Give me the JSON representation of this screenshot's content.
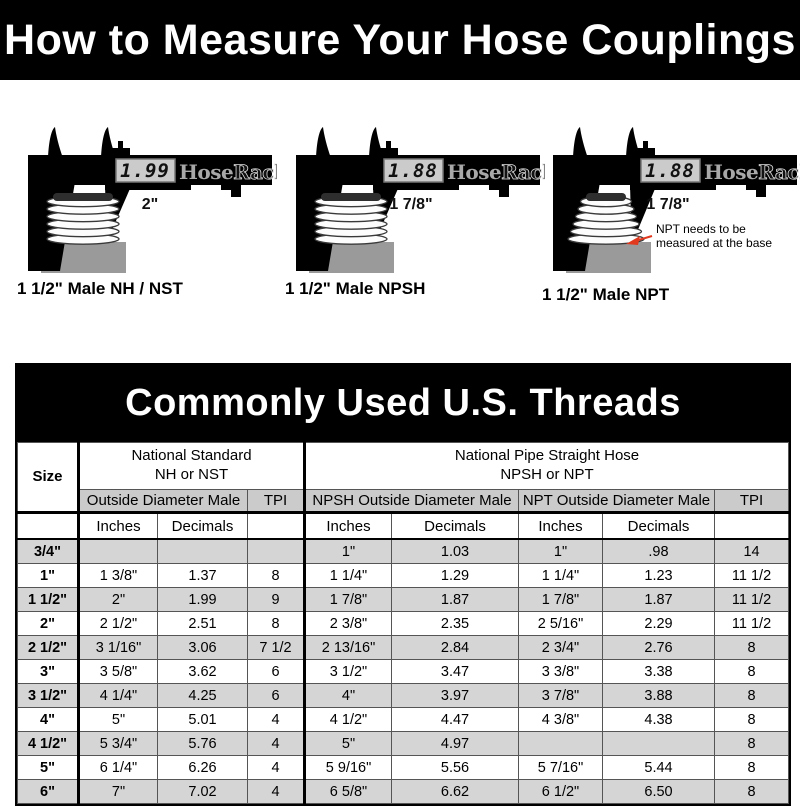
{
  "page_title": "How to Measure Your Hose Couplings",
  "calipers": [
    {
      "display_reading": "1.99",
      "brand": {
        "hose": "Hose",
        "rack": "Rack"
      },
      "measurement_label": "2\"",
      "caption": "1 1/2\" Male NH / NST"
    },
    {
      "display_reading": "1.88",
      "brand": {
        "hose": "Hose",
        "rack": "Rack"
      },
      "measurement_label": "1 7/8\"",
      "caption": "1 1/2\" Male NPSH"
    },
    {
      "display_reading": "1.88",
      "brand": {
        "hose": "Hose",
        "rack": "Rack"
      },
      "measurement_label": "1 7/8\"",
      "caption": "1 1/2\" Male NPT",
      "annotation_line1": "NPT needs to be",
      "annotation_line2": "measured at the base"
    }
  ],
  "table": {
    "title": "Commonly Used U.S. Threads",
    "headers": {
      "size": "Size",
      "nh_group_line1": "National Standard",
      "nh_group_line2": "NH or NST",
      "npsh_group_line1": "National Pipe Straight Hose",
      "npsh_group_line2": "NPSH or NPT",
      "nh_od": "Outside Diameter Male",
      "nh_tpi": "TPI",
      "npsh_od": "NPSH Outside Diameter Male",
      "npt_od": "NPT Outside Diameter Male",
      "npt_tpi": "TPI",
      "inches": "Inches",
      "decimals": "Decimals"
    },
    "rows": [
      [
        "3/4\"",
        "",
        "",
        "",
        "1\"",
        "1.03",
        "1\"",
        ".98",
        "14"
      ],
      [
        "1\"",
        "1 3/8\"",
        "1.37",
        "8",
        "1 1/4\"",
        "1.29",
        "1 1/4\"",
        "1.23",
        "11 1/2"
      ],
      [
        "1 1/2\"",
        "2\"",
        "1.99",
        "9",
        "1 7/8\"",
        "1.87",
        "1 7/8\"",
        "1.87",
        "11 1/2"
      ],
      [
        "2\"",
        "2 1/2\"",
        "2.51",
        "8",
        "2 3/8\"",
        "2.35",
        "2 5/16\"",
        "2.29",
        "11 1/2"
      ],
      [
        "2 1/2\"",
        "3 1/16\"",
        "3.06",
        "7 1/2",
        "2 13/16\"",
        "2.84",
        "2 3/4\"",
        "2.76",
        "8"
      ],
      [
        "3\"",
        "3 5/8\"",
        "3.62",
        "6",
        "3 1/2\"",
        "3.47",
        "3 3/8\"",
        "3.38",
        "8"
      ],
      [
        "3 1/2\"",
        "4 1/4\"",
        "4.25",
        "6",
        "4\"",
        "3.97",
        "3 7/8\"",
        "3.88",
        "8"
      ],
      [
        "4\"",
        "5\"",
        "5.01",
        "4",
        "4 1/2\"",
        "4.47",
        "4 3/8\"",
        "4.38",
        "8"
      ],
      [
        "4 1/2\"",
        "5 3/4\"",
        "5.76",
        "4",
        "5\"",
        "4.97",
        "",
        "",
        "8"
      ],
      [
        "5\"",
        "6 1/4\"",
        "6.26",
        "4",
        "5 9/16\"",
        "5.56",
        "5 7/16\"",
        "5.44",
        "8"
      ],
      [
        "6\"",
        "7\"",
        "7.02",
        "4",
        "6 5/8\"",
        "6.62",
        "6 1/2\"",
        "6.50",
        "8"
      ]
    ]
  },
  "colors": {
    "banner_bg": "#000000",
    "annotation_arrow_red": "#e0391e",
    "row_stripe_gray": "#d5d5d5",
    "subheader_gray": "#cbcbcb",
    "base_gray": "#9a9a9a",
    "lcd_gray": "#cbcbcb"
  }
}
